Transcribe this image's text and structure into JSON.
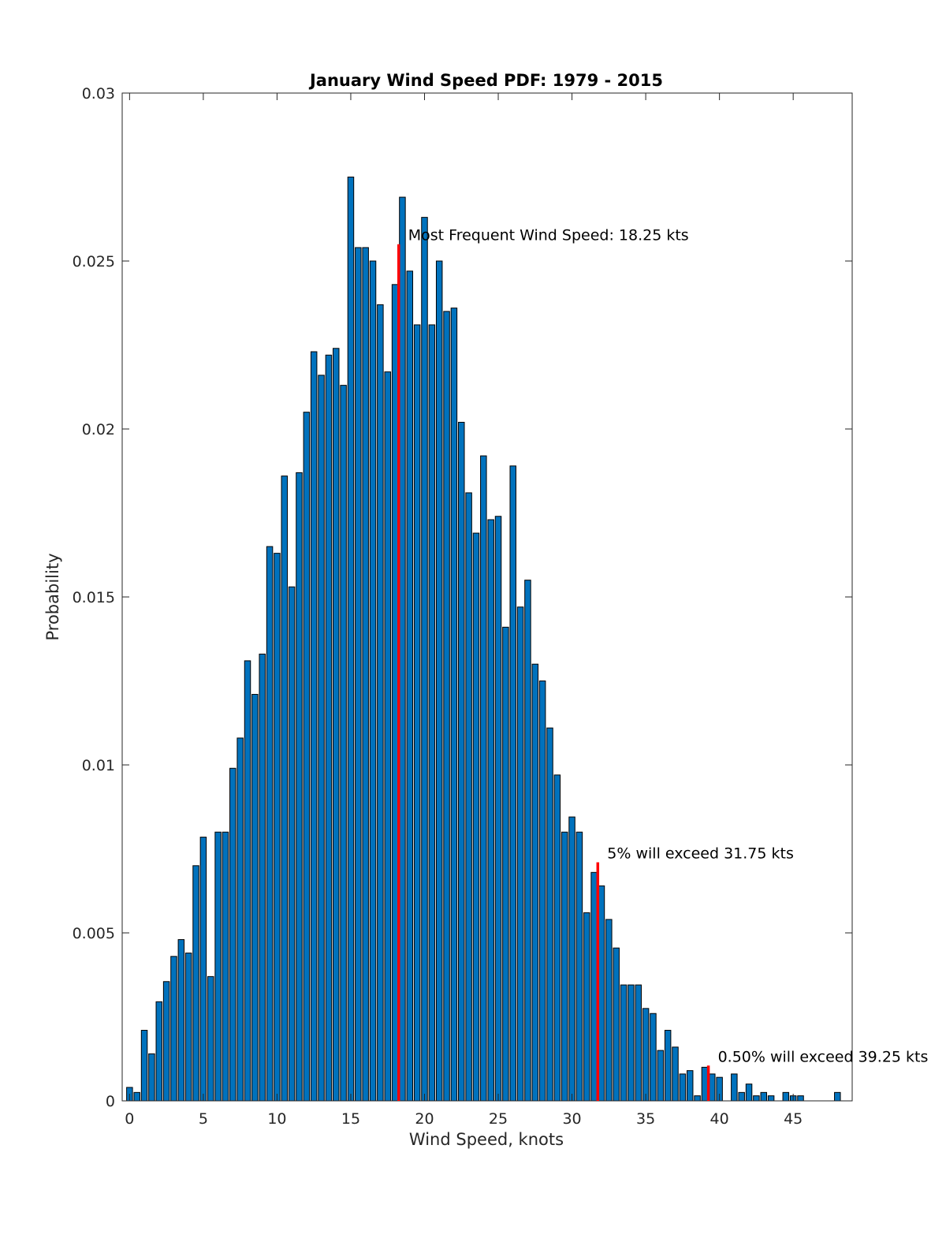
{
  "chart_data": {
    "type": "bar",
    "title": "January Wind Speed PDF: 1979 - 2015",
    "xlabel": "Wind Speed, knots",
    "ylabel": "Probability",
    "xlim": [
      -0.5,
      49
    ],
    "ylim": [
      0,
      0.03
    ],
    "xticks": [
      0,
      5,
      10,
      15,
      20,
      25,
      30,
      35,
      40,
      45
    ],
    "yticks": [
      0,
      0.005,
      0.01,
      0.015,
      0.02,
      0.025,
      0.03
    ],
    "ytick_labels": [
      "0",
      "0.005",
      "0.01",
      "0.015",
      "0.02",
      "0.025",
      "0.03"
    ],
    "grid": false,
    "bar_color": "#0072bd",
    "bar_edge_color": "#000000",
    "marker_color": "#ff0000",
    "bin_width": 0.5,
    "x": [
      0,
      0.5,
      1,
      1.5,
      2,
      2.5,
      3,
      3.5,
      4,
      4.5,
      5,
      5.5,
      6,
      6.5,
      7,
      7.5,
      8,
      8.5,
      9,
      9.5,
      10,
      10.5,
      11,
      11.5,
      12,
      12.5,
      13,
      13.5,
      14,
      14.5,
      15,
      15.5,
      16,
      16.5,
      17,
      17.5,
      18,
      18.5,
      19,
      19.5,
      20,
      20.5,
      21,
      21.5,
      22,
      22.5,
      23,
      23.5,
      24,
      24.5,
      25,
      25.5,
      26,
      26.5,
      27,
      27.5,
      28,
      28.5,
      29,
      29.5,
      30,
      30.5,
      31,
      31.5,
      32,
      32.5,
      33,
      33.5,
      34,
      34.5,
      35,
      35.5,
      36,
      36.5,
      37,
      37.5,
      38,
      38.5,
      39,
      39.5,
      40,
      40.5,
      41,
      41.5,
      42,
      42.5,
      43,
      43.5,
      44,
      44.5,
      45,
      45.5,
      46,
      46.5,
      47,
      47.5,
      48
    ],
    "values": [
      0.0004,
      0.00025,
      0.0021,
      0.0014,
      0.00295,
      0.00355,
      0.0043,
      0.0048,
      0.0044,
      0.007,
      0.00785,
      0.0037,
      0.008,
      0.008,
      0.0099,
      0.0108,
      0.0131,
      0.0121,
      0.0133,
      0.0165,
      0.0163,
      0.0186,
      0.0153,
      0.0187,
      0.0205,
      0.0223,
      0.0216,
      0.0222,
      0.0224,
      0.0213,
      0.0275,
      0.0254,
      0.0254,
      0.025,
      0.0237,
      0.0217,
      0.0243,
      0.0269,
      0.0247,
      0.0231,
      0.0263,
      0.0231,
      0.025,
      0.0235,
      0.0236,
      0.0202,
      0.0181,
      0.0169,
      0.0192,
      0.0173,
      0.0174,
      0.0141,
      0.0189,
      0.0147,
      0.0155,
      0.013,
      0.0125,
      0.0111,
      0.0097,
      0.008,
      0.00845,
      0.008,
      0.0056,
      0.0068,
      0.0064,
      0.0054,
      0.00455,
      0.00345,
      0.00345,
      0.00345,
      0.00275,
      0.0026,
      0.0015,
      0.0021,
      0.0016,
      0.0008,
      0.0009,
      0.00015,
      0.001,
      0.0008,
      0.0007,
      0,
      0.0008,
      0.00025,
      0.0005,
      0.00015,
      0.00025,
      0.00015,
      0,
      0.00025,
      0.00015,
      0.00015,
      0,
      0,
      0,
      0,
      0.00025
    ],
    "markers": [
      {
        "x": 18.25,
        "height": 0.0255,
        "label": "Most Frequent Wind Speed: 18.25 kts"
      },
      {
        "x": 31.75,
        "height": 0.0071,
        "label": "5% will exceed 31.75 kts"
      },
      {
        "x": 39.25,
        "height": 0.00105,
        "label": "0.50% will exceed 39.25 kts"
      }
    ]
  }
}
